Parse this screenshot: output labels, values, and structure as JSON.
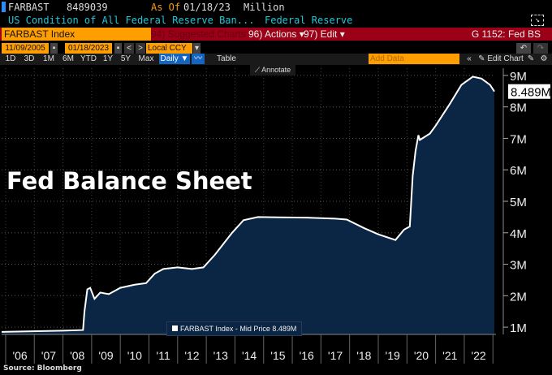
{
  "header": {
    "ticker": "FARBAST",
    "value": "8489039",
    "as_of_label": "As Of",
    "as_of_date": "01/18/23",
    "unit": "Million",
    "description": "US Condition of All Federal Reserve Ban...",
    "source_name": "Federal Reserve"
  },
  "toolbar": {
    "security": "FARBAST Index",
    "suggested": "94) Suggested Charts",
    "actions": "96) Actions",
    "edit": "97) Edit",
    "chart_id": "G 1152: Fed BS",
    "start_date": "11/09/2005",
    "end_date": "01/18/2023",
    "currency": "Local CCY",
    "periods": [
      "1D",
      "3D",
      "1M",
      "6M",
      "YTD",
      "1Y",
      "5Y",
      "Max"
    ],
    "frequency": "Daily",
    "table": "Table",
    "add_data": "Add Data",
    "edit_chart": "Edit Chart",
    "annotate": "Annotate"
  },
  "overlay_title": "Fed Balance Sheet",
  "source": "Source:  Bloomberg",
  "colors": {
    "fill": "#0b2545",
    "line": "#ffffff",
    "background": "#000000",
    "accent_orange": "#ff9e00",
    "bar_red": "#9b0016"
  },
  "chart_data": {
    "type": "area",
    "title": "Fed Balance Sheet",
    "legend": [
      "FARBAST Index - Mid Price 8.489M"
    ],
    "legend_placement": "bottom-center",
    "last_value_label": "8.489M",
    "grid": true,
    "xlim": [
      2005.86,
      2023.05
    ],
    "ylim": [
      0.77,
      9.23
    ],
    "x_tick_labels": [
      "'06",
      "'07",
      "'08",
      "'09",
      "'10",
      "'11",
      "'12",
      "'13",
      "'14",
      "'15",
      "'16",
      "'17",
      "'18",
      "'19",
      "'20",
      "'21",
      "'22"
    ],
    "y_ticks": [
      1,
      2,
      3,
      4,
      5,
      6,
      7,
      8,
      9
    ],
    "y_tick_labels": [
      "1M",
      "2M",
      "3M",
      "4M",
      "5M",
      "6M",
      "7M",
      "8M",
      "9M"
    ],
    "series": [
      {
        "name": "FARBAST Index - Mid Price",
        "x": [
          2005.86,
          2008.0,
          2008.7,
          2008.75,
          2008.85,
          2008.95,
          2009.1,
          2009.3,
          2009.6,
          2010.0,
          2010.5,
          2010.9,
          2011.2,
          2011.5,
          2012.0,
          2012.5,
          2012.9,
          2013.3,
          2013.9,
          2014.3,
          2014.8,
          2015.5,
          2016.5,
          2017.5,
          2017.9,
          2018.5,
          2019.0,
          2019.6,
          2019.9,
          2020.1,
          2020.2,
          2020.3,
          2020.4,
          2020.45,
          2020.8,
          2021.0,
          2021.5,
          2021.9,
          2022.3,
          2022.6,
          2022.9,
          2023.05
        ],
        "y": [
          0.85,
          0.89,
          0.91,
          1.5,
          2.2,
          2.25,
          1.9,
          2.1,
          2.05,
          2.25,
          2.35,
          2.4,
          2.7,
          2.85,
          2.9,
          2.85,
          2.9,
          3.3,
          4.0,
          4.4,
          4.5,
          4.49,
          4.48,
          4.45,
          4.42,
          4.15,
          3.95,
          3.77,
          4.1,
          4.2,
          5.8,
          6.6,
          7.1,
          6.95,
          7.15,
          7.4,
          8.1,
          8.7,
          8.96,
          8.9,
          8.7,
          8.489
        ]
      }
    ]
  }
}
